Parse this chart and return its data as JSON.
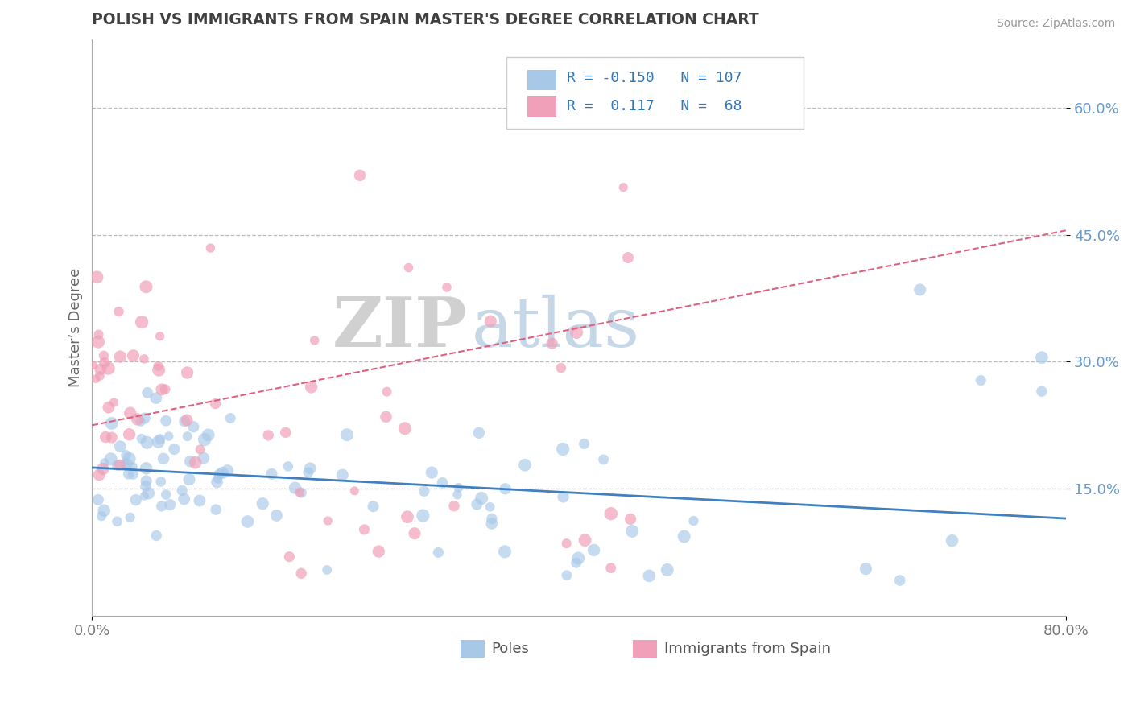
{
  "title": "POLISH VS IMMIGRANTS FROM SPAIN MASTER'S DEGREE CORRELATION CHART",
  "source_text": "Source: ZipAtlas.com",
  "ylabel": "Master’s Degree",
  "xlim": [
    0.0,
    0.8
  ],
  "ylim": [
    0.0,
    0.68
  ],
  "ytick_positions": [
    0.15,
    0.3,
    0.45,
    0.6
  ],
  "ytick_labels": [
    "15.0%",
    "30.0%",
    "45.0%",
    "60.0%"
  ],
  "r_blue": -0.15,
  "n_blue": 107,
  "r_pink": 0.117,
  "n_pink": 68,
  "blue_color": "#A8C8E8",
  "pink_color": "#F0A0B8",
  "blue_line_color": "#4080C0",
  "pink_line_color": "#E06080",
  "legend_label_blue": "Poles",
  "legend_label_pink": "Immigrants from Spain",
  "watermark_zip": "ZIP",
  "watermark_atlas": "atlas",
  "background_color": "#FFFFFF",
  "grid_color": "#BBBBBB",
  "title_color": "#404040",
  "tick_label_color": "#6699CC",
  "blue_line_start_y": 0.175,
  "blue_line_end_y": 0.115,
  "pink_line_start_y": 0.225,
  "pink_line_end_y": 0.455
}
